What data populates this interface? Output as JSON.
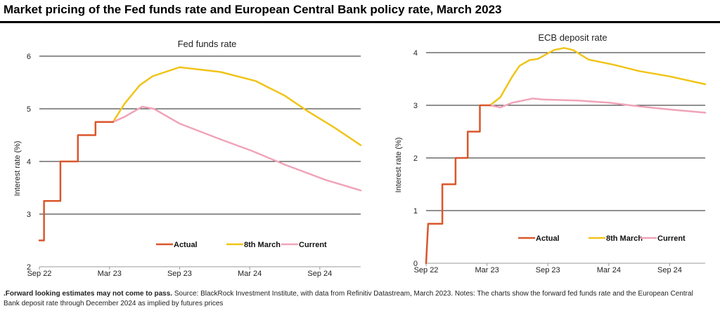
{
  "header": {
    "title": "Market pricing of the Fed funds rate and European Central Bank policy rate, March 2023"
  },
  "footnote": {
    "bold": ".Forward looking estimates may not come to pass.",
    "text": " Source: BlackRock Investment Institute, with data from Refinitiv Datastream, March 2023. Notes: The charts show the forward fed funds rate and the European Central Bank deposit rate through December 2024 as implied by futures prices"
  },
  "colors": {
    "actual": "#d9572b",
    "march8": "#f0c419",
    "current": "#f0a3b8",
    "grid": "#222222",
    "axis": "#9a9a9a"
  },
  "chart_data": [
    {
      "type": "line",
      "title": "Fed funds rate",
      "ylabel": "Interest rate (%)",
      "xlabel": "",
      "ylim": [
        2,
        6
      ],
      "yticks": [
        2,
        3,
        4,
        5,
        6
      ],
      "xlim": [
        0,
        27.5
      ],
      "xticks": [
        {
          "x": 0,
          "label": "Sep 22"
        },
        {
          "x": 6,
          "label": "Mar 23"
        },
        {
          "x": 12,
          "label": "Sep 23"
        },
        {
          "x": 18,
          "label": "Mar 24"
        },
        {
          "x": 24,
          "label": "Sep 24"
        }
      ],
      "grid": true,
      "legend": "bottom-center",
      "series": [
        {
          "name": "Actual",
          "color_key": "actual",
          "step": true,
          "points": [
            [
              0,
              2.5
            ],
            [
              0.4,
              2.5
            ],
            [
              0.4,
              3.25
            ],
            [
              1.8,
              3.25
            ],
            [
              1.8,
              4.0
            ],
            [
              3.3,
              4.0
            ],
            [
              3.3,
              4.5
            ],
            [
              4.8,
              4.5
            ],
            [
              4.8,
              4.75
            ],
            [
              6.3,
              4.75
            ]
          ]
        },
        {
          "name": "8th March",
          "color_key": "march8",
          "points": [
            [
              6.3,
              4.75
            ],
            [
              7.3,
              5.1
            ],
            [
              8.6,
              5.45
            ],
            [
              9.7,
              5.62
            ],
            [
              12,
              5.79
            ],
            [
              15.5,
              5.7
            ],
            [
              18.5,
              5.53
            ],
            [
              21,
              5.25
            ],
            [
              23,
              4.95
            ],
            [
              25.2,
              4.65
            ],
            [
              27.5,
              4.31
            ]
          ]
        },
        {
          "name": "Current",
          "color_key": "current",
          "points": [
            [
              6.3,
              4.75
            ],
            [
              7.3,
              4.85
            ],
            [
              8.8,
              5.04
            ],
            [
              9.8,
              5.0
            ],
            [
              12,
              4.72
            ],
            [
              15.5,
              4.42
            ],
            [
              18.2,
              4.2
            ],
            [
              21,
              3.94
            ],
            [
              24.5,
              3.65
            ],
            [
              27.5,
              3.45
            ]
          ]
        }
      ]
    },
    {
      "type": "line",
      "title": "ECB deposit rate",
      "ylabel": "Interest rate (%)",
      "xlabel": "",
      "ylim": [
        0,
        4
      ],
      "yticks": [
        0,
        1,
        2,
        3,
        4
      ],
      "xlim": [
        0,
        27.5
      ],
      "xticks": [
        {
          "x": 0,
          "label": "Sep 22"
        },
        {
          "x": 6,
          "label": "Mar 23"
        },
        {
          "x": 12,
          "label": "Sep 23"
        },
        {
          "x": 18,
          "label": "Mar 24"
        },
        {
          "x": 24,
          "label": "Sep 24"
        }
      ],
      "grid": true,
      "legend": "bottom-center",
      "series": [
        {
          "name": "Actual",
          "color_key": "actual",
          "step": true,
          "points": [
            [
              0,
              0
            ],
            [
              0.2,
              0.75
            ],
            [
              1.6,
              0.75
            ],
            [
              1.6,
              1.5
            ],
            [
              2.9,
              1.5
            ],
            [
              2.9,
              2.0
            ],
            [
              4.1,
              2.0
            ],
            [
              4.1,
              2.5
            ],
            [
              5.3,
              2.5
            ],
            [
              5.3,
              3.0
            ],
            [
              6.3,
              3.0
            ]
          ]
        },
        {
          "name": "8th March",
          "color_key": "march8",
          "points": [
            [
              6.3,
              3.0
            ],
            [
              7.3,
              3.15
            ],
            [
              8.5,
              3.55
            ],
            [
              9.2,
              3.75
            ],
            [
              10.2,
              3.86
            ],
            [
              11,
              3.88
            ],
            [
              12.6,
              4.05
            ],
            [
              13.6,
              4.09
            ],
            [
              14.5,
              4.05
            ],
            [
              16,
              3.87
            ],
            [
              18.5,
              3.77
            ],
            [
              21,
              3.65
            ],
            [
              24,
              3.55
            ],
            [
              27.5,
              3.4
            ]
          ]
        },
        {
          "name": "Current",
          "color_key": "current",
          "points": [
            [
              6.3,
              3.0
            ],
            [
              7.3,
              2.96
            ],
            [
              8.5,
              3.05
            ],
            [
              10.5,
              3.13
            ],
            [
              11.5,
              3.11
            ],
            [
              15,
              3.09
            ],
            [
              18,
              3.05
            ],
            [
              21,
              2.98
            ],
            [
              24,
              2.92
            ],
            [
              27.5,
              2.86
            ]
          ]
        }
      ]
    }
  ]
}
